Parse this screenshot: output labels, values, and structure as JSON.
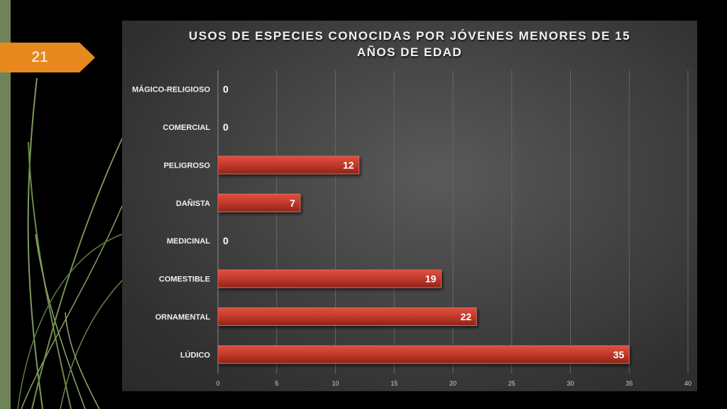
{
  "slide": {
    "number": "21"
  },
  "colors": {
    "bar": "#c0392b",
    "accent": "#e8891f",
    "stripe": "#6f8358"
  },
  "chart_data": {
    "type": "bar",
    "orientation": "horizontal",
    "title": "USOS DE ESPECIES CONOCIDAS POR JÓVENES MENORES DE 15 AÑOS DE EDAD",
    "xlabel": "",
    "ylabel": "",
    "categories": [
      "MÁGICO-RELIGIOSO",
      "COMERCIAL",
      "PELIGROSO",
      "DAÑISTA",
      "MEDICINAL",
      "COMESTIBLE",
      "ORNAMENTAL",
      "LÚDICO"
    ],
    "values": [
      0,
      0,
      12,
      7,
      0,
      19,
      22,
      35
    ],
    "xlim": [
      0,
      40
    ],
    "xticks": [
      0,
      5,
      10,
      15,
      20,
      25,
      30,
      35,
      40
    ],
    "grid": true,
    "legend": "none"
  }
}
